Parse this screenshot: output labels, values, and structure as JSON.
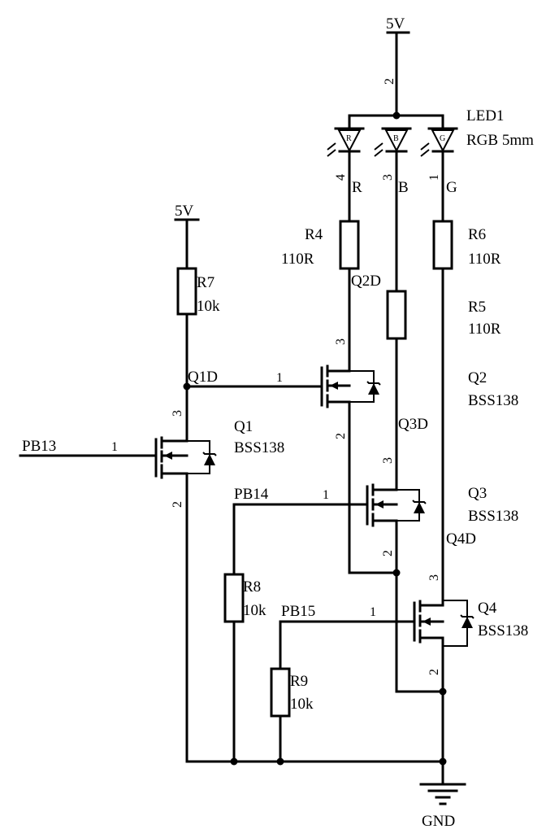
{
  "power": {
    "vcc_main": "5V",
    "vcc_q1": "5V",
    "gnd": "GND"
  },
  "led": {
    "ref": "LED1",
    "value": "RGB 5mm",
    "common_pin": "2",
    "chips": [
      {
        "letter": "R",
        "pin": "4",
        "net": "R"
      },
      {
        "letter": "B",
        "pin": "3",
        "net": "B"
      },
      {
        "letter": "G",
        "pin": "1",
        "net": "G"
      }
    ]
  },
  "resistors": {
    "r4": {
      "ref": "R4",
      "value": "110R"
    },
    "r5": {
      "ref": "R5",
      "value": "110R"
    },
    "r6": {
      "ref": "R6",
      "value": "110R"
    },
    "r7": {
      "ref": "R7",
      "value": "10k"
    },
    "r8": {
      "ref": "R8",
      "value": "10k"
    },
    "r9": {
      "ref": "R9",
      "value": "10k"
    }
  },
  "transistors": {
    "q1": {
      "ref": "Q1",
      "value": "BSS138",
      "gate_pin": "1",
      "drain_pin": "3",
      "source_pin": "2"
    },
    "q2": {
      "ref": "Q2",
      "value": "BSS138",
      "gate_pin": "1",
      "drain_pin": "3",
      "source_pin": "2"
    },
    "q3": {
      "ref": "Q3",
      "value": "BSS138",
      "gate_pin": "1",
      "drain_pin": "3",
      "source_pin": "2"
    },
    "q4": {
      "ref": "Q4",
      "value": "BSS138",
      "gate_pin": "1",
      "drain_pin": "3",
      "source_pin": "2"
    }
  },
  "nets": {
    "q1d": "Q1D",
    "q2d": "Q2D",
    "q3d": "Q3D",
    "q4d": "Q4D",
    "pb13": "PB13",
    "pb14": "PB14",
    "pb15": "PB15"
  }
}
